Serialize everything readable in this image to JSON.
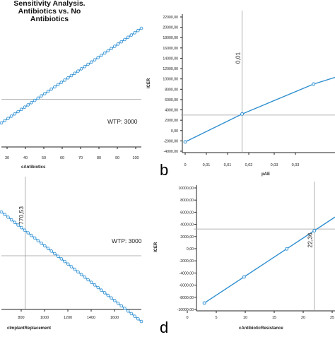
{
  "title": {
    "line1": "Sensitivity Analysis.",
    "line2": "Antibiotics vs. No Antibiotics"
  },
  "panel_letters": {
    "b": "b",
    "d": "d"
  },
  "colors": {
    "line": "#2f8fd0",
    "marker_fill": "#e8f5ff",
    "ref_line": "#9a9a9a",
    "axis": "#222222"
  },
  "chart_data": [
    {
      "id": "a",
      "type": "line",
      "xlabel": "cAntibiotics",
      "ylabel": "",
      "x_ticks": [
        "30",
        "40",
        "50",
        "60",
        "70",
        "80",
        "90",
        "100"
      ],
      "y_ticks": [],
      "xlim": [
        20,
        100
      ],
      "series": [
        {
          "x": [
            20,
            100
          ],
          "y": [
            1000,
            9000
          ]
        }
      ],
      "markers": "dense",
      "h_refline": {
        "y": 3000,
        "label": "WTP: 3000"
      },
      "v_refline": null
    },
    {
      "id": "b",
      "type": "line",
      "xlabel": "pAE",
      "ylabel": "ICER",
      "x_ticks": [
        "0",
        "0,01",
        "0,01",
        "0,02",
        "0,03",
        "0,03"
      ],
      "y_ticks": [
        "-4000,00",
        "-2000,00",
        "0,00",
        "2000,00",
        "4000,00",
        "6000,00",
        "8000,00",
        "10000,00",
        "12000,00",
        "14000,00",
        "16000,00",
        "18000,00",
        "20000,00",
        "22000,00"
      ],
      "xlim": [
        0,
        0.035
      ],
      "ylim": [
        -4000,
        22000
      ],
      "series": [
        {
          "x": [
            0,
            0.0133,
            0.03,
            0.035
          ],
          "y": [
            -2200,
            3200,
            9000,
            10300
          ]
        }
      ],
      "markers": [
        0,
        1,
        2
      ],
      "h_refline": {
        "y": 3000,
        "label": ""
      },
      "v_refline": {
        "x": 0.0133,
        "label": "0,01"
      }
    },
    {
      "id": "c",
      "type": "line",
      "xlabel": "cImplantReplacement",
      "ylabel": "",
      "x_ticks": [
        "800",
        "1000",
        "1200",
        "1400",
        "1600"
      ],
      "y_ticks": [],
      "xlim": [
        600,
        1600
      ],
      "series": [
        {
          "x": [
            600,
            1600
          ],
          "y": [
            8000,
            -4500
          ]
        }
      ],
      "markers": "dense",
      "h_refline": {
        "y": 3000,
        "label": "WTP: 3000"
      },
      "v_refline": {
        "x": 770.53,
        "label": "770,53"
      }
    },
    {
      "id": "d",
      "type": "line",
      "xlabel": "cAntibioticResistance",
      "ylabel": "ICER",
      "x_ticks": [
        "0",
        "5",
        "10",
        "15",
        "20",
        "25"
      ],
      "y_ticks": [
        "-10000,00",
        "-8000,00",
        "-6000,00",
        "-4000,00",
        "-2000,00",
        "0,00",
        "2000,00",
        "4000,00",
        "6000,00",
        "8000,00",
        "10000,00"
      ],
      "xlim": [
        0,
        26
      ],
      "ylim": [
        -10000,
        10000
      ],
      "series": [
        {
          "x": [
            3,
            26
          ],
          "y": [
            -9400,
            5000
          ]
        }
      ],
      "markers": [
        3,
        10,
        17.5,
        22.36
      ],
      "h_refline": {
        "y": 3000,
        "label": ""
      },
      "v_refline": {
        "x": 22.36,
        "label": "22,36"
      }
    }
  ]
}
